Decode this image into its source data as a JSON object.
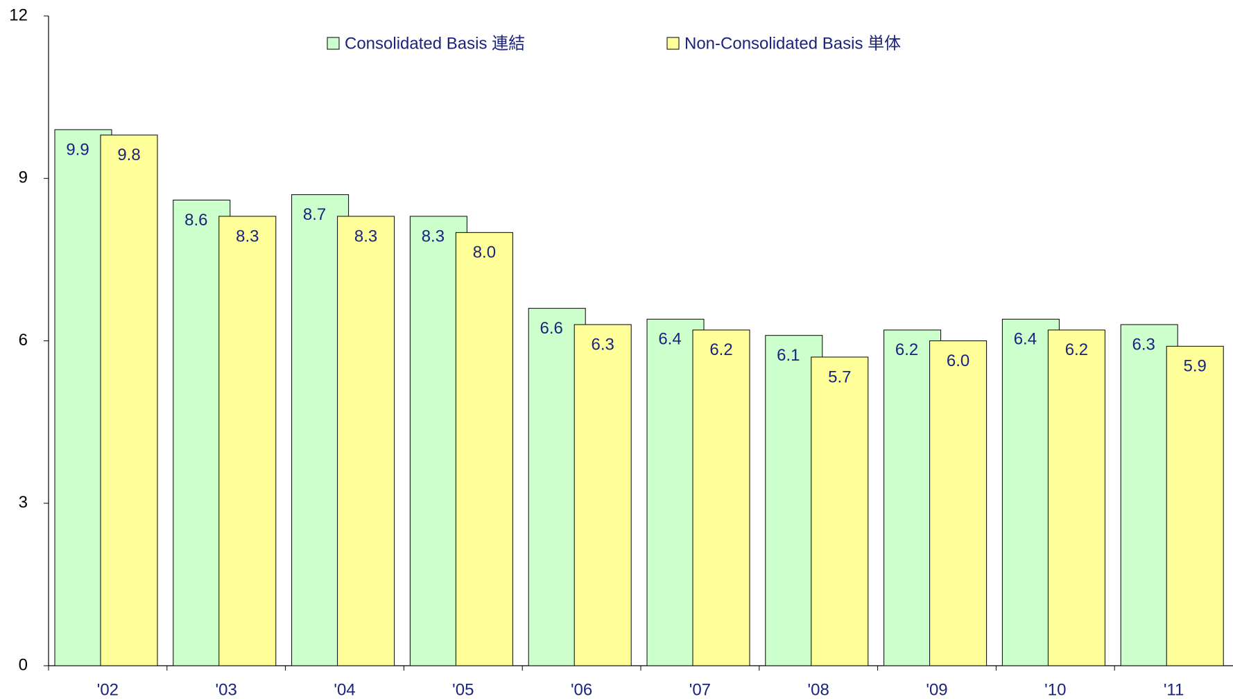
{
  "chart_data": {
    "type": "bar",
    "categories": [
      "'02",
      "'03",
      "'04",
      "'05",
      "'06",
      "'07",
      "'08",
      "'09",
      "'10",
      "'11"
    ],
    "series": [
      {
        "name": "Consolidated Basis 連結",
        "color": "#ccffcc",
        "values": [
          9.9,
          8.6,
          8.7,
          8.3,
          6.6,
          6.4,
          6.1,
          6.2,
          6.4,
          6.3
        ],
        "value_labels": [
          "9.9",
          "8.6",
          "8.7",
          "8.3",
          "6.6",
          "6.4",
          "6.1",
          "6.2",
          "6.4",
          "6.3"
        ]
      },
      {
        "name": "Non-Consolidated Basis 単体",
        "color": "#ffff99",
        "values": [
          9.8,
          8.3,
          8.3,
          8.0,
          6.3,
          6.2,
          5.7,
          6.0,
          6.2,
          5.9
        ],
        "value_labels": [
          "9.8",
          "8.3",
          "8.3",
          "8.0",
          "6.3",
          "6.2",
          "5.7",
          "6.0",
          "6.2",
          "5.9"
        ]
      }
    ],
    "ylim": [
      0,
      12
    ],
    "yticks": [
      0,
      3,
      6,
      9,
      12
    ],
    "grid": false,
    "legend": "top"
  }
}
